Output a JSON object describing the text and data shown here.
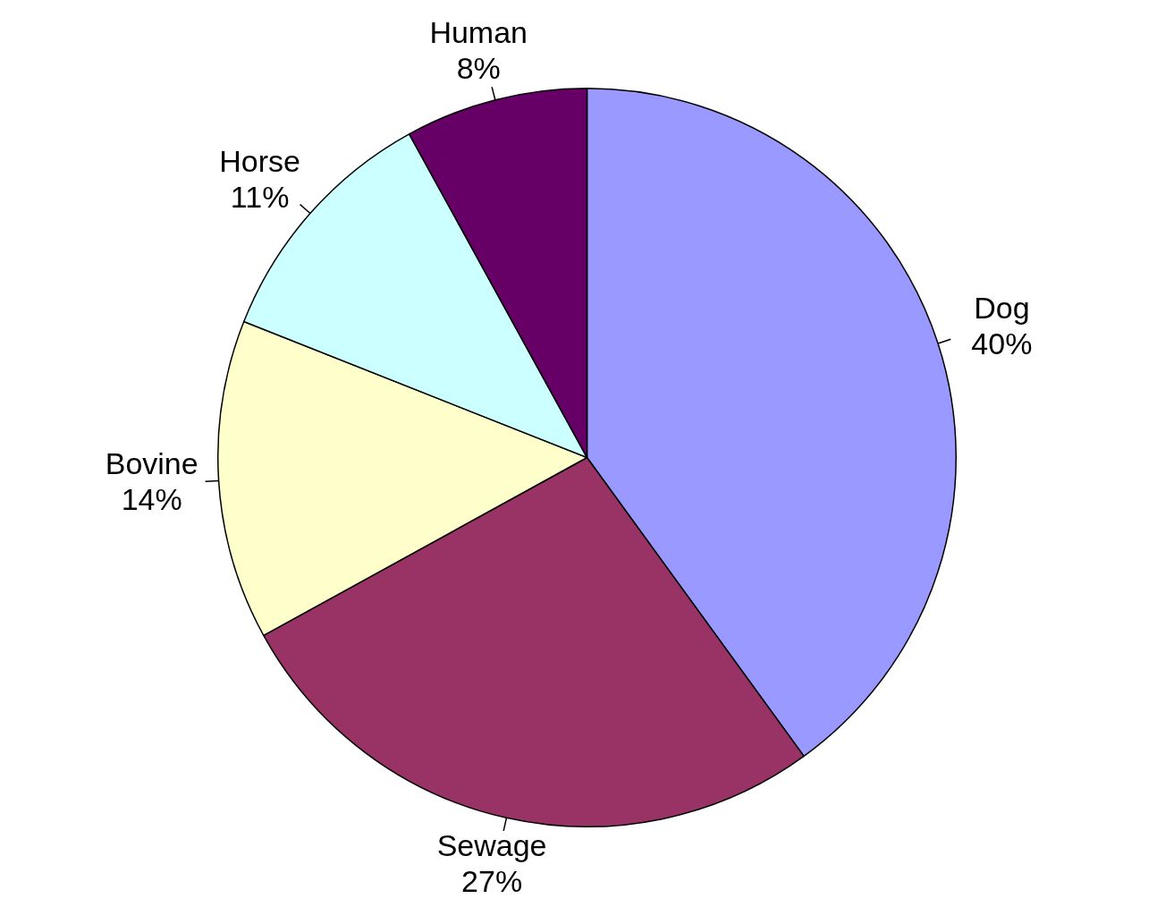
{
  "chart_data": {
    "type": "pie",
    "categories": [
      "Dog",
      "Sewage",
      "Bovine",
      "Horse",
      "Human"
    ],
    "values": [
      40,
      27,
      14,
      11,
      8
    ],
    "colors": [
      "#9999ff",
      "#993366",
      "#ffffcc",
      "#ccffff",
      "#660066"
    ],
    "value_labels": [
      "40%",
      "27%",
      "14%",
      "11%",
      "8%"
    ],
    "legend": false
  }
}
